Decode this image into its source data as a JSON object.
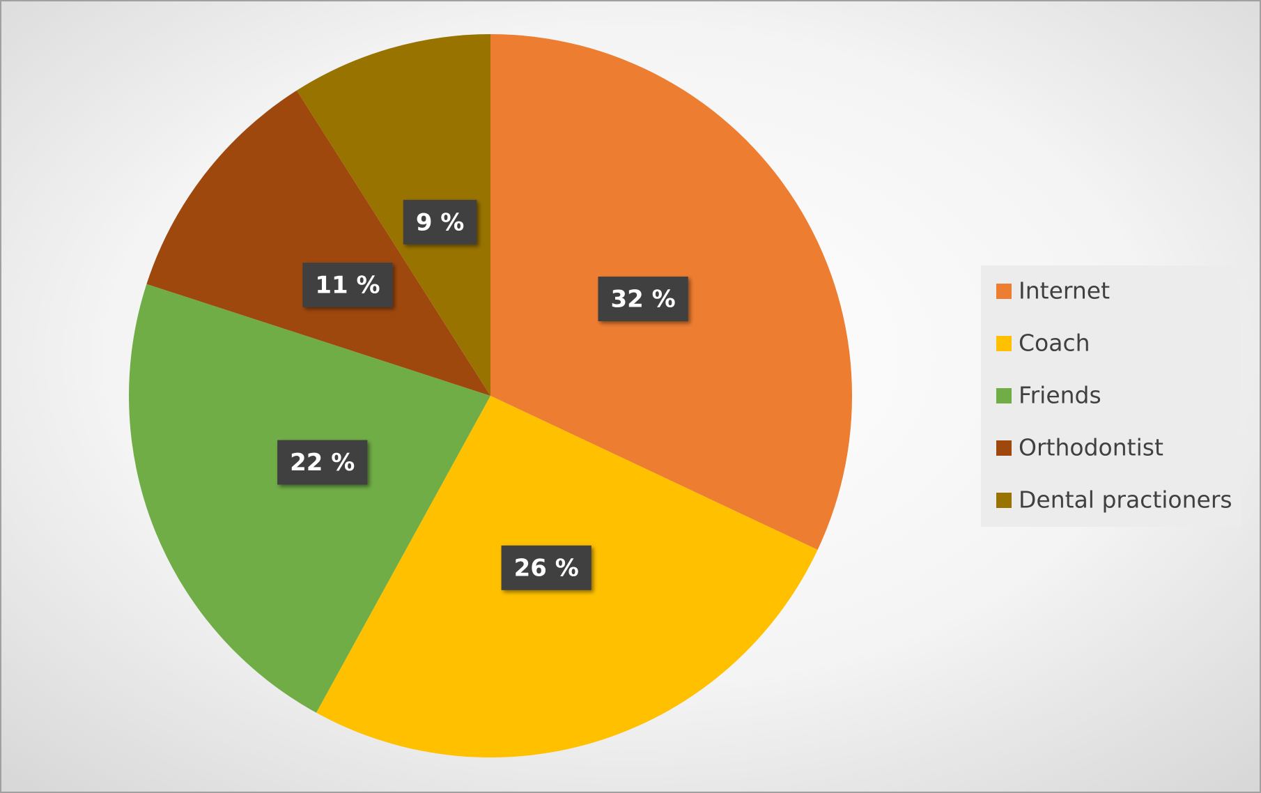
{
  "chart_data": {
    "type": "pie",
    "categories": [
      "Internet",
      "Coach",
      "Friends",
      "Orthodontist",
      "Dental practioners"
    ],
    "values": [
      32,
      26,
      22,
      11,
      9
    ],
    "value_labels": [
      "32 %",
      "26 %",
      "22 %",
      "11 %",
      "9 %"
    ],
    "colors": [
      "#ED7D31",
      "#FFC000",
      "#70AD47",
      "#9E480E",
      "#997300"
    ],
    "legend": "right"
  }
}
